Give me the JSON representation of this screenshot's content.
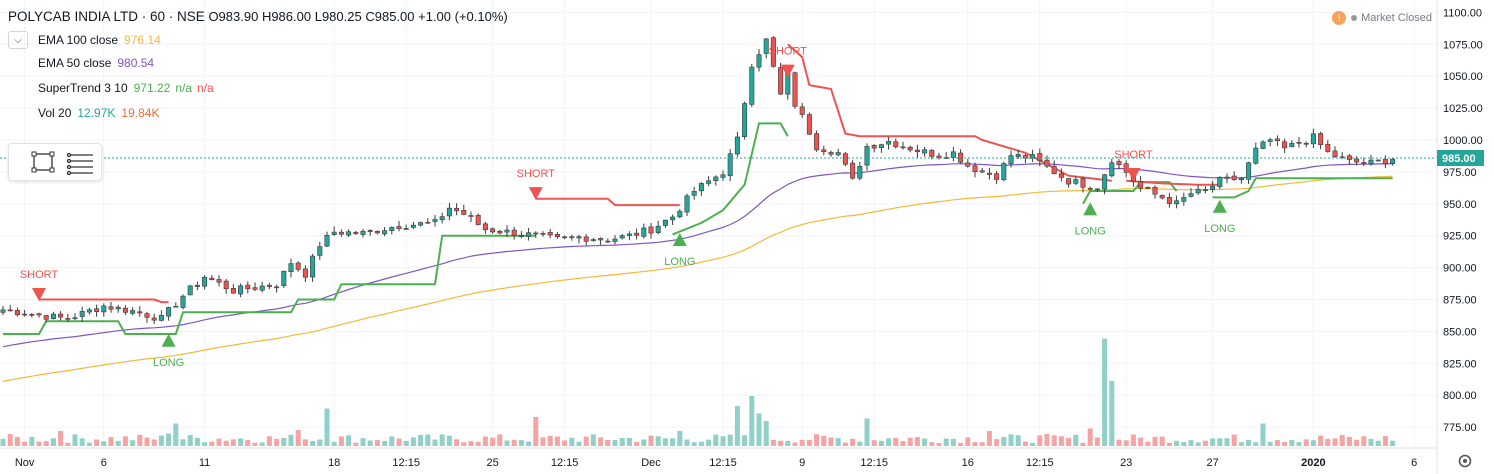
{
  "header": {
    "symbol": "POLYCAB INDIA LTD · 60 · NSE",
    "open": "O983.90",
    "high": "H986.00",
    "low": "L980.25",
    "close": "C985.00",
    "change": "+1.00 (+0.10%)"
  },
  "indicators": [
    {
      "name": "EMA 100 close",
      "values": [
        "976.14"
      ],
      "colors": [
        "#f4b83a"
      ]
    },
    {
      "name": "EMA 50 close",
      "values": [
        "980.54"
      ],
      "colors": [
        "#7e57c2"
      ]
    },
    {
      "name": "SuperTrend 3 10",
      "values": [
        "971.22",
        "n/a",
        "n/a"
      ],
      "colors": [
        "#4caf50",
        "#4caf50",
        "#ef5350"
      ]
    },
    {
      "name": "Vol 20",
      "values": [
        "12.97K",
        "19.84K"
      ],
      "colors": [
        "#26a69a",
        "#ef6c35"
      ]
    }
  ],
  "market_status": "Market Closed",
  "market_status_icon": "exclamation-icon",
  "price_label": "985.00",
  "colors": {
    "up": "#26a69a",
    "down": "#ef5350",
    "st_up": "#4caf50",
    "st_down": "#ef5350",
    "ema100": "#f4b83a",
    "ema50": "#7e57c2",
    "vol_up": "#8fd0c8",
    "vol_down": "#f5a3a3"
  },
  "chart_data": {
    "type": "candlestick",
    "y_axis": {
      "ticks": [
        775,
        800,
        825,
        850,
        875,
        900,
        925,
        950,
        975,
        1000,
        1025,
        1050,
        1075,
        1100
      ],
      "tick_labels": [
        "775.00",
        "800.00",
        "825.00",
        "850.00",
        "875.00",
        "900.00",
        "925.00",
        "950.00",
        "975.00",
        "1000.00",
        "1025.00",
        "1050.00",
        "1075.00",
        "1100.00"
      ],
      "range": [
        765,
        1105
      ]
    },
    "x_axis": {
      "labels": [
        "Nov",
        "6",
        "11",
        "18",
        "12:15",
        "25",
        "12:15",
        "Dec",
        "12:15",
        "9",
        "12:15",
        "16",
        "12:15",
        "23",
        "27",
        "2020",
        "6"
      ],
      "label_bar_index": [
        3,
        14,
        28,
        46,
        56,
        68,
        78,
        90,
        100,
        111,
        121,
        134,
        144,
        156,
        168,
        182,
        196
      ]
    },
    "last_price": 985.0,
    "anchors": [
      [
        0,
        867
      ],
      [
        6,
        862
      ],
      [
        9,
        860
      ],
      [
        14,
        870
      ],
      [
        18,
        866
      ],
      [
        22,
        860
      ],
      [
        25,
        878
      ],
      [
        28,
        893
      ],
      [
        32,
        882
      ],
      [
        38,
        887
      ],
      [
        40,
        904
      ],
      [
        42,
        895
      ],
      [
        44,
        918
      ],
      [
        46,
        928
      ],
      [
        50,
        927
      ],
      [
        55,
        933
      ],
      [
        60,
        935
      ],
      [
        62,
        947
      ],
      [
        64,
        942
      ],
      [
        67,
        930
      ],
      [
        70,
        928
      ],
      [
        74,
        925
      ],
      [
        77,
        922
      ],
      [
        80,
        924
      ],
      [
        84,
        922
      ],
      [
        87,
        925
      ],
      [
        90,
        930
      ],
      [
        93,
        940
      ],
      [
        96,
        960
      ],
      [
        100,
        975
      ],
      [
        102,
        1000
      ],
      [
        104,
        1060
      ],
      [
        106,
        1078
      ],
      [
        108,
        1035
      ],
      [
        109,
        1050
      ],
      [
        110,
        1028
      ],
      [
        111,
        1018
      ],
      [
        113,
        995
      ],
      [
        116,
        990
      ],
      [
        118,
        968
      ],
      [
        120,
        995
      ],
      [
        123,
        999
      ],
      [
        127,
        992
      ],
      [
        130,
        988
      ],
      [
        132,
        990
      ],
      [
        134,
        980
      ],
      [
        136,
        975
      ],
      [
        138,
        972
      ],
      [
        140,
        988
      ],
      [
        143,
        986
      ],
      [
        146,
        975
      ],
      [
        148,
        968
      ],
      [
        152,
        963
      ],
      [
        154,
        985
      ],
      [
        156,
        975
      ],
      [
        158,
        962
      ],
      [
        161,
        955
      ],
      [
        163,
        950
      ],
      [
        165,
        958
      ],
      [
        167,
        960
      ],
      [
        169,
        968
      ],
      [
        172,
        970
      ],
      [
        174,
        992
      ],
      [
        176,
        1000
      ],
      [
        178,
        993
      ],
      [
        180,
        998
      ],
      [
        182,
        1002
      ],
      [
        184,
        990
      ],
      [
        187,
        983
      ],
      [
        190,
        982
      ],
      [
        193,
        985
      ]
    ],
    "supertrend": [
      {
        "dir": "up",
        "points": [
          [
            0,
            848
          ],
          [
            5,
            848
          ],
          [
            6,
            858
          ],
          [
            16,
            858
          ],
          [
            17,
            848
          ],
          [
            24,
            848
          ],
          [
            25,
            865
          ],
          [
            40,
            865
          ],
          [
            41,
            875
          ],
          [
            46,
            875
          ],
          [
            47,
            887
          ],
          [
            60,
            887
          ],
          [
            61,
            925
          ],
          [
            74,
            925
          ]
        ]
      },
      {
        "dir": "down",
        "points": [
          [
            5,
            875
          ],
          [
            21,
            875
          ],
          [
            22,
            873
          ],
          [
            23,
            873
          ]
        ]
      },
      {
        "dir": "down",
        "points": [
          [
            74,
            954
          ],
          [
            84,
            954
          ],
          [
            85,
            949
          ],
          [
            94,
            949
          ]
        ]
      },
      {
        "dir": "up",
        "points": [
          [
            93,
            926
          ],
          [
            97,
            935
          ],
          [
            100,
            945
          ],
          [
            103,
            965
          ],
          [
            105,
            1013
          ],
          [
            108,
            1013
          ],
          [
            109,
            1003
          ]
        ]
      },
      {
        "dir": "down",
        "points": [
          [
            109,
            1075
          ],
          [
            111,
            1065
          ],
          [
            112,
            1043
          ],
          [
            115,
            1040
          ],
          [
            117,
            1005
          ],
          [
            119,
            1003
          ],
          [
            135,
            1003
          ],
          [
            136,
            1000
          ],
          [
            142,
            990
          ],
          [
            148,
            972
          ],
          [
            154,
            968
          ]
        ]
      },
      {
        "dir": "up",
        "points": [
          [
            150,
            950
          ],
          [
            151,
            960
          ],
          [
            157,
            960
          ],
          [
            158,
            967
          ],
          [
            162,
            967
          ],
          [
            163,
            960
          ]
        ]
      },
      {
        "dir": "down",
        "points": [
          [
            156,
            968
          ],
          [
            161,
            966
          ],
          [
            166,
            965
          ],
          [
            169,
            965
          ]
        ]
      },
      {
        "dir": "up",
        "points": [
          [
            168,
            955
          ],
          [
            171,
            955
          ],
          [
            173,
            960
          ],
          [
            174,
            970
          ],
          [
            193,
            970
          ]
        ]
      }
    ],
    "signals": [
      {
        "type": "SHORT",
        "bar": 5,
        "price": 877
      },
      {
        "type": "LONG",
        "bar": 23,
        "price": 845
      },
      {
        "type": "SHORT",
        "bar": 74,
        "price": 956
      },
      {
        "type": "LONG",
        "bar": 94,
        "price": 924
      },
      {
        "type": "SHORT",
        "bar": 109,
        "price": 1052
      },
      {
        "type": "LONG",
        "bar": 151,
        "price": 948
      },
      {
        "type": "SHORT",
        "bar": 157,
        "price": 971
      },
      {
        "type": "LONG",
        "bar": 169,
        "price": 950
      }
    ],
    "volume_spikes": [
      [
        8,
        0.3
      ],
      [
        23,
        0.25
      ],
      [
        24,
        0.45
      ],
      [
        41,
        0.32
      ],
      [
        45,
        0.75
      ],
      [
        74,
        0.58
      ],
      [
        94,
        0.3
      ],
      [
        102,
        0.8
      ],
      [
        104,
        1.0
      ],
      [
        105,
        0.65
      ],
      [
        106,
        0.5
      ],
      [
        120,
        0.55
      ],
      [
        137,
        0.3
      ],
      [
        151,
        0.35
      ],
      [
        153,
        2.15
      ],
      [
        154,
        1.3
      ],
      [
        175,
        0.45
      ]
    ]
  }
}
